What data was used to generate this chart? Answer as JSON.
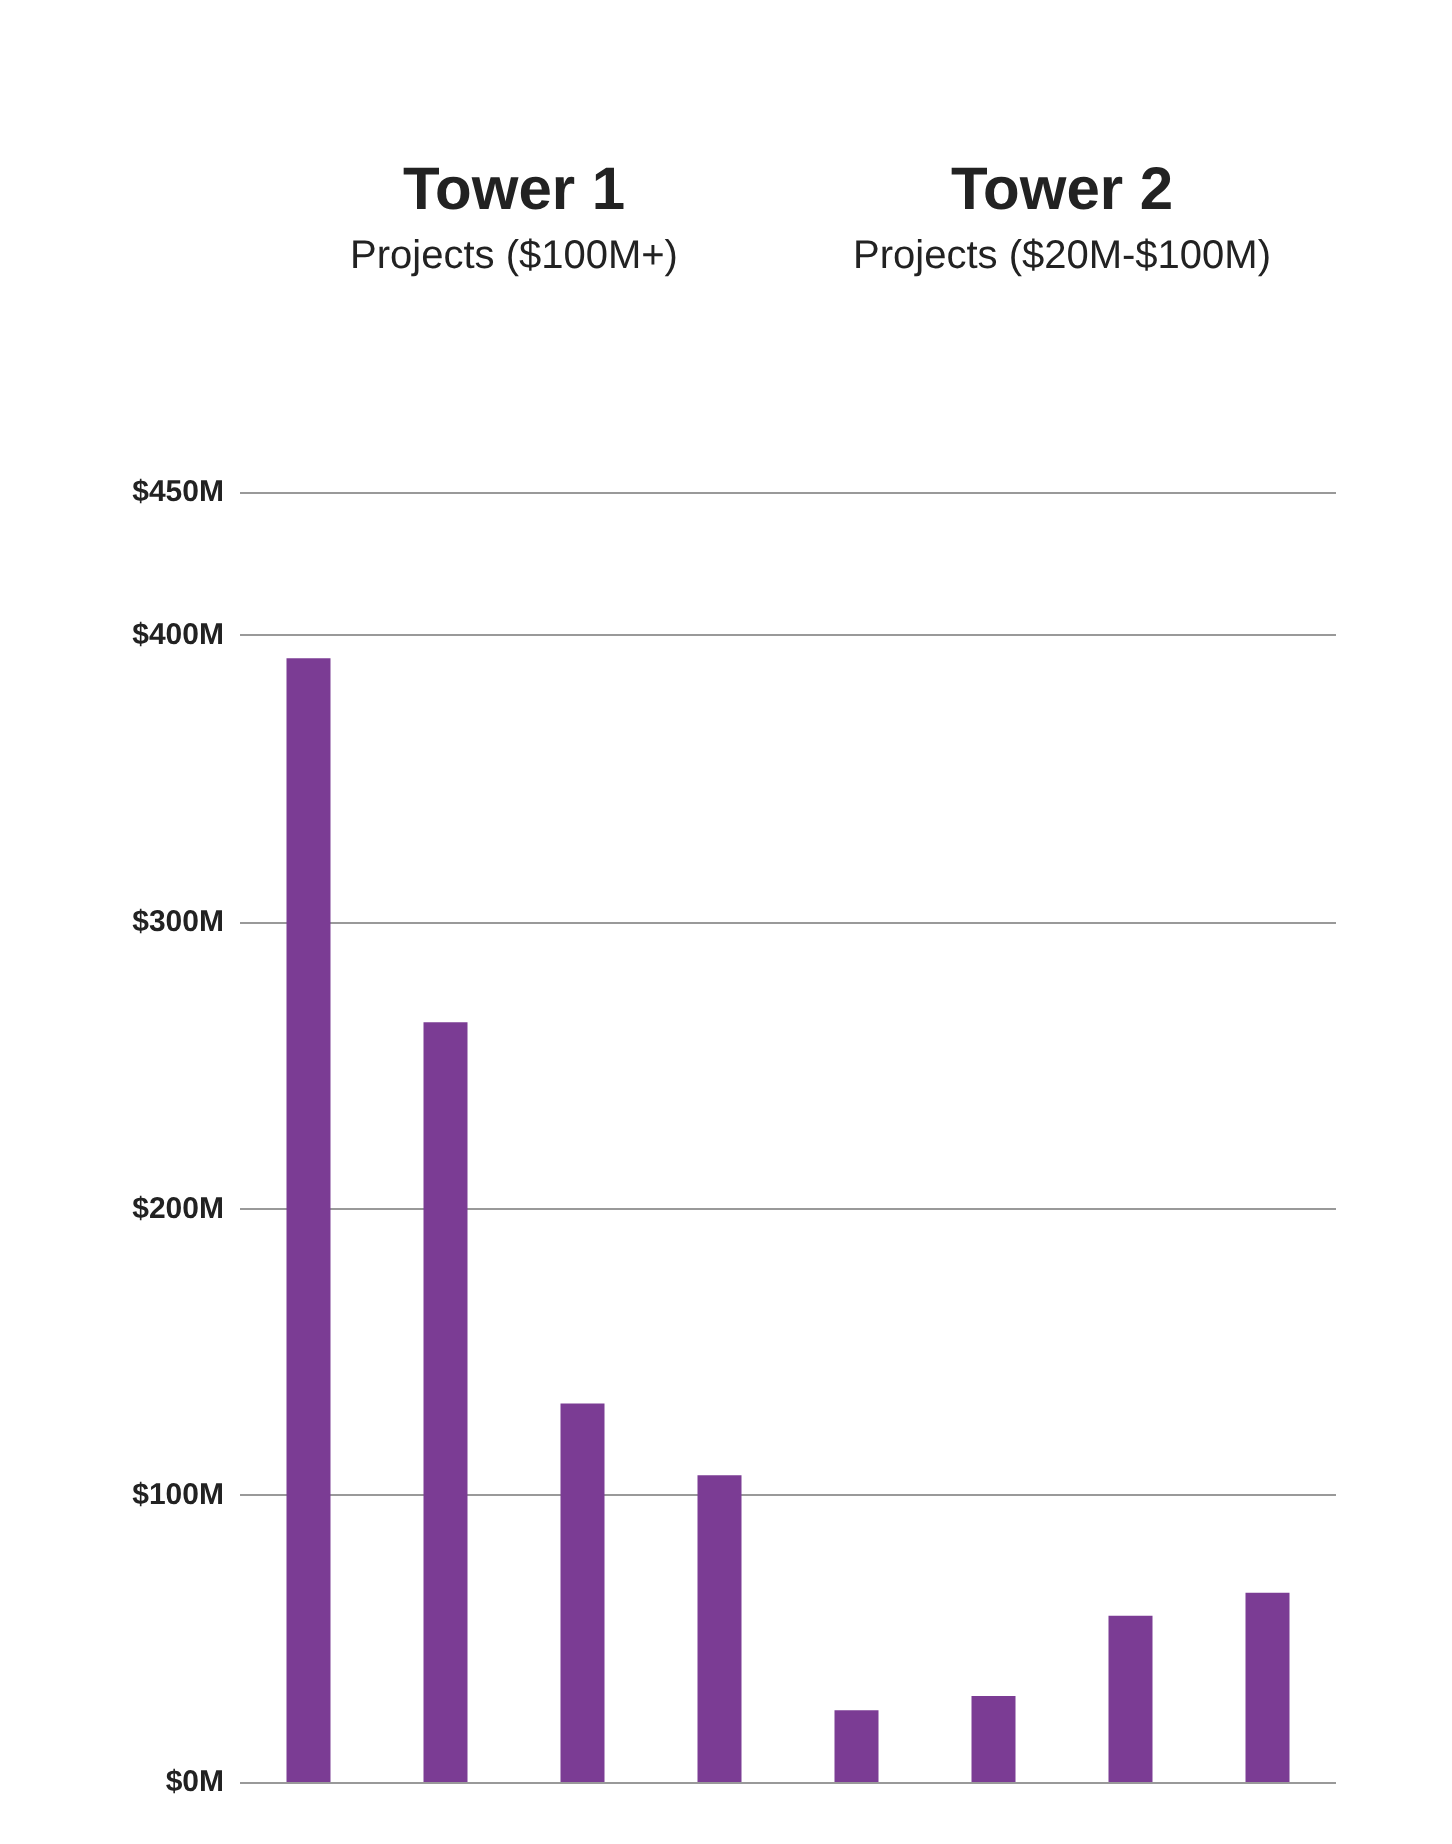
{
  "chart_data": {
    "type": "bar",
    "categories": [
      null,
      null,
      null,
      null,
      null,
      null,
      null,
      null
    ],
    "values": [
      392,
      265,
      132,
      107,
      25,
      30,
      58,
      66
    ],
    "color": "#7b3c94",
    "annotations": [
      "Tower 1",
      "Projects ($100M+)",
      "Tower 2",
      "Projects ($20M-$100M)"
    ],
    "ylim": [
      0,
      450
    ],
    "yticks": [
      {
        "value": 0,
        "label": "$0M"
      },
      {
        "value": 100,
        "label": "$100M"
      },
      {
        "value": 200,
        "label": "$200M"
      },
      {
        "value": 300,
        "label": "$300M"
      },
      {
        "value": 400,
        "label": "$400M"
      },
      {
        "value": 450,
        "label": "$450M"
      }
    ],
    "grid": "y",
    "tick_labels": "y"
  }
}
